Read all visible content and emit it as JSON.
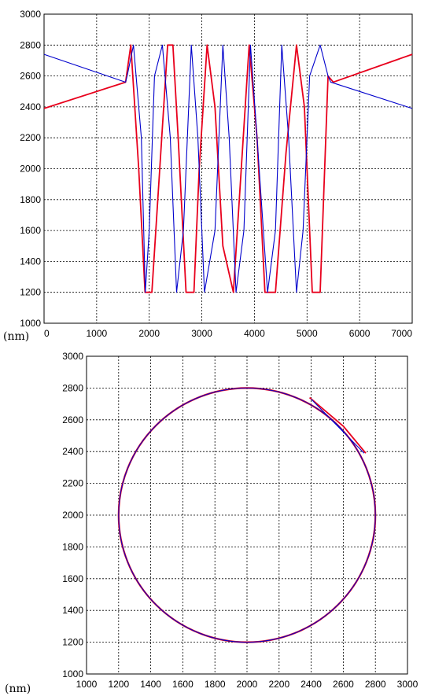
{
  "colors": {
    "series_fit": "#0000cc",
    "series_measured": "#e8001c",
    "grid": "#000000",
    "background": "#ffffff"
  },
  "chart_data": [
    {
      "type": "line",
      "title": "",
      "xlabel": "",
      "ylabel": "",
      "unit_label": "(nm)",
      "xlim": [
        0,
        7000
      ],
      "ylim": [
        1000,
        3000
      ],
      "xticks": [
        0,
        1000,
        2000,
        3000,
        4000,
        5000,
        6000,
        7000
      ],
      "yticks": [
        1000,
        1200,
        1400,
        1600,
        1800,
        2000,
        2200,
        2400,
        2600,
        2800,
        3000
      ],
      "grid": true,
      "series": [
        {
          "color": "#0000cc",
          "x": [
            0,
            1550,
            1580,
            1700,
            1850,
            1925,
            2000,
            2100,
            2250,
            2400,
            2520,
            2650,
            2800,
            2925,
            3050,
            3250,
            3400,
            3520,
            3650,
            3800,
            3925,
            4050,
            4250,
            4400,
            4520,
            4650,
            4800,
            4925,
            5050,
            5250,
            5400,
            5450,
            7000
          ],
          "y": [
            2740,
            2560,
            2600,
            2800,
            2200,
            1200,
            1600,
            2600,
            2800,
            2200,
            1200,
            1600,
            2800,
            2200,
            1200,
            1600,
            2800,
            2200,
            1200,
            1600,
            2800,
            2200,
            1200,
            1600,
            2800,
            2200,
            1200,
            1600,
            2600,
            2800,
            2600,
            2560,
            2390
          ]
        },
        {
          "color": "#e8001c",
          "x": [
            0,
            1550,
            1650,
            1800,
            1920,
            2050,
            2200,
            2350,
            2450,
            2550,
            2700,
            2850,
            2950,
            3100,
            3250,
            3400,
            3600,
            3750,
            3900,
            4050,
            4200,
            4400,
            4600,
            4800,
            4950,
            5100,
            5250,
            5400,
            5500,
            7000
          ],
          "y": [
            2390,
            2560,
            2800,
            2000,
            1200,
            1200,
            2000,
            2800,
            2800,
            2200,
            1200,
            1200,
            2000,
            2800,
            2400,
            1500,
            1200,
            2000,
            2800,
            2200,
            1200,
            1200,
            2100,
            2800,
            2400,
            1200,
            1200,
            2600,
            2560,
            2740
          ]
        }
      ]
    },
    {
      "type": "line",
      "title": "",
      "xlabel": "",
      "ylabel": "",
      "unit_label": "(nm)",
      "xlim": [
        1000,
        3000
      ],
      "ylim": [
        1000,
        3000
      ],
      "xticks": [
        1000,
        1200,
        1400,
        1600,
        1800,
        2000,
        2200,
        2400,
        2600,
        2800,
        3000
      ],
      "yticks": [
        1000,
        1200,
        1400,
        1600,
        1800,
        2000,
        2200,
        2400,
        2600,
        2800,
        3000
      ],
      "grid": true,
      "circle": {
        "center": [
          2000,
          2000
        ],
        "radius": 800
      },
      "series": [
        {
          "color": "#0000cc",
          "x": [
            2400,
            2730
          ],
          "y": [
            2730,
            2390
          ]
        },
        {
          "color": "#e8001c",
          "x": [
            2390,
            2600,
            2740
          ],
          "y": [
            2740,
            2560,
            2390
          ]
        }
      ]
    }
  ]
}
